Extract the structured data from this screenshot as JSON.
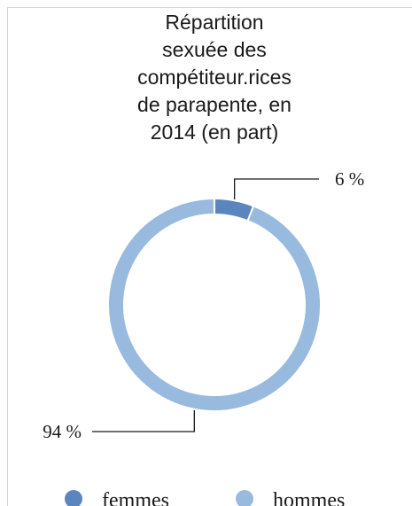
{
  "chart_data": {
    "type": "pie",
    "variant": "donut",
    "title_lines": [
      "Répartition",
      "sexuée des",
      "compétiteur.rices",
      "de parapente, en",
      "2014 (en part)"
    ],
    "categories": [
      "femmes",
      "hommes"
    ],
    "values": [
      6,
      94
    ],
    "data_labels": [
      "6 %",
      "94 %"
    ],
    "unit": "%",
    "colors": [
      "#5b85bf",
      "#98bade"
    ],
    "legend": {
      "position": "bottom",
      "entries": [
        "femmes",
        "hommes"
      ]
    }
  }
}
